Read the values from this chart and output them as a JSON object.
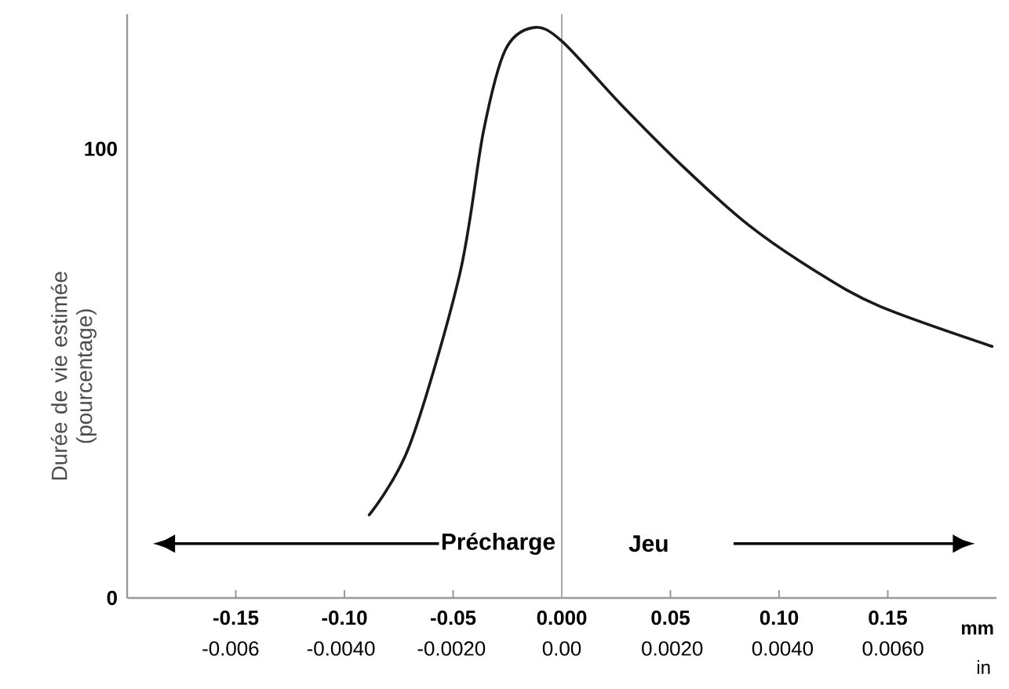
{
  "chart_data": {
    "type": "line",
    "ylabel": "Durée de vie estimée (pourcentage)",
    "xlabel": "mm",
    "x2label": "in",
    "x": [
      -0.0886,
      -0.07,
      -0.047,
      -0.036,
      -0.026,
      -0.013,
      0.0,
      0.027,
      0.057,
      0.086,
      0.116,
      0.146,
      0.198
    ],
    "values": [
      18.5,
      34,
      72,
      104,
      122,
      127,
      124,
      110,
      95.5,
      83,
      73,
      65,
      56
    ],
    "color": "#1a1a1a",
    "xlim": [
      -0.2,
      0.2
    ],
    "xticks": [
      {
        "value": -0.15,
        "label": "-0.15"
      },
      {
        "value": -0.1,
        "label": "-0.10"
      },
      {
        "value": -0.05,
        "label": "-0.05"
      },
      {
        "value": 0,
        "label": "0.000"
      },
      {
        "value": 0.05,
        "label": "0.05"
      },
      {
        "value": 0.1,
        "label": "0.10"
      },
      {
        "value": 0.15,
        "label": "0.15"
      }
    ],
    "x2lim": [
      -0.007874,
      0.007874
    ],
    "x2ticks": [
      {
        "value": -0.006,
        "label": "-0.006"
      },
      {
        "value": -0.004,
        "label": "-0.0040"
      },
      {
        "value": -0.002,
        "label": "-0.0020"
      },
      {
        "value": 0,
        "label": "0.00"
      },
      {
        "value": 0.002,
        "label": "0.0020"
      },
      {
        "value": 0.004,
        "label": "0.0040"
      },
      {
        "value": 0.006,
        "label": "0.0060"
      }
    ],
    "ylim": [
      0,
      130
    ],
    "yticks": [
      0,
      100
    ],
    "ref_lines": [
      {
        "axis": "x",
        "value": 0,
        "color": "#aaaaaa"
      }
    ],
    "annotations": [
      "Précharge",
      "Jeu"
    ]
  }
}
